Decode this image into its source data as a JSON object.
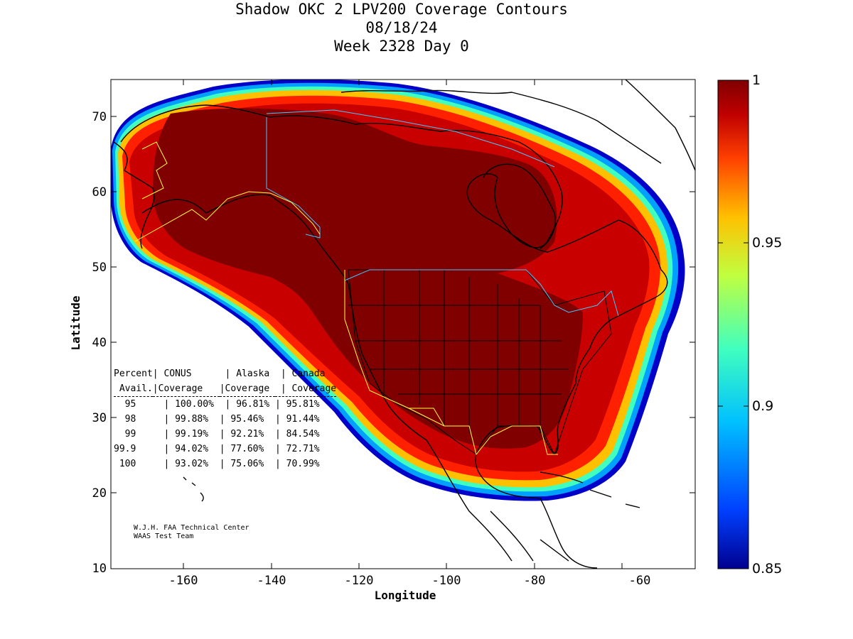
{
  "title": {
    "line1": "Shadow OKC 2 LPV200 Coverage Contours",
    "line2": "08/18/24",
    "line3": "Week 2328 Day 0"
  },
  "axes": {
    "xlabel": "Longitude",
    "ylabel": "Latitude",
    "xticks": [
      "-160",
      "-140",
      "-120",
      "-100",
      "-80",
      "-60"
    ],
    "yticks": [
      "70",
      "60",
      "50",
      "40",
      "30",
      "20",
      "10"
    ],
    "xrange": [
      -175,
      -50
    ],
    "yrange": [
      10,
      75
    ]
  },
  "colorbar": {
    "ticks": [
      "1",
      "0.95",
      "0.9",
      "0.85"
    ],
    "range": [
      0.85,
      1.0
    ],
    "colors": [
      "#00008f",
      "#0040ff",
      "#00c0ff",
      "#40ffbf",
      "#c0ff40",
      "#ffc000",
      "#ff4000",
      "#bf0000",
      "#800000"
    ]
  },
  "stats_table": {
    "header1": [
      "Percent",
      "| CONUS   ",
      " | Alaska ",
      " | Canada"
    ],
    "header2": [
      " Avail.",
      "|Coverage ",
      "|Coverage",
      " | Coverage"
    ],
    "rows": [
      [
        "  95  ",
        "  | 100.00% ",
        " | 96.81% ",
        "| 95.81%"
      ],
      [
        "  98  ",
        "  | 99.88%  ",
        "| 95.46% ",
        "| 91.44%"
      ],
      [
        "  99  ",
        "  | 99.19%  ",
        "| 92.21% ",
        "| 84.54%"
      ],
      [
        "99.9  ",
        "  | 94.02%  ",
        "| 77.60% ",
        "| 72.71%"
      ],
      [
        " 100  ",
        "  | 93.02%  ",
        "| 75.06% ",
        "| 70.99%"
      ]
    ]
  },
  "credit": {
    "line1": "W.J.H. FAA Technical Center",
    "line2": "WAAS Test Team"
  }
}
